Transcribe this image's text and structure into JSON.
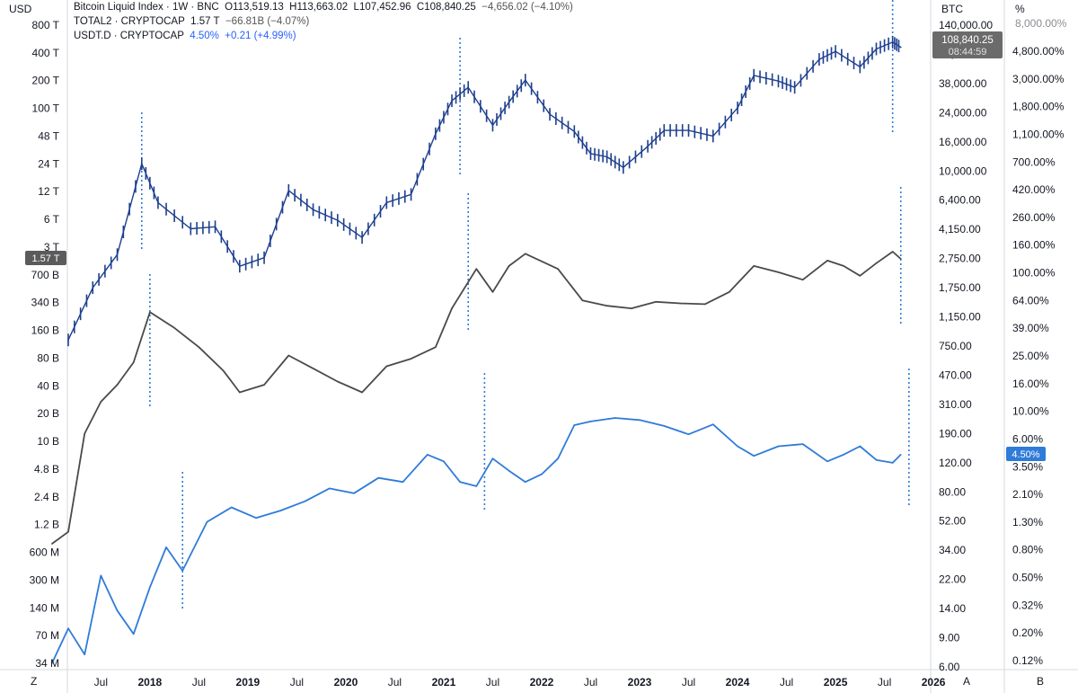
{
  "axes": {
    "left_unit": "USD",
    "right1_unit": "BTC",
    "right2_unit": "%",
    "left_ticks": [
      "800 T",
      "400 T",
      "200 T",
      "100 T",
      "48 T",
      "24 T",
      "12 T",
      "6 T",
      "3 T",
      "700 B",
      "340 B",
      "160 B",
      "80 B",
      "40 B",
      "20 B",
      "10 B",
      "4.8 B",
      "2.4 B",
      "1.2 B",
      "600 M",
      "300 M",
      "140 M",
      "70 M",
      "34 M"
    ],
    "right1_ticks": [
      "140,000.00",
      "58,000.00",
      "38,000.00",
      "24,000.00",
      "16,000.00",
      "10,000.00",
      "6,400.00",
      "4,150.00",
      "2,750.00",
      "1,750.00",
      "1,150.00",
      "750.00",
      "470.00",
      "310.00",
      "190.00",
      "120.00",
      "80.00",
      "52.00",
      "34.00",
      "22.00",
      "14.00",
      "9.00",
      "6.00"
    ],
    "right2_ticks": [
      "4,800.00%",
      "3,000.00%",
      "1,800.00%",
      "1,100.00%",
      "700.00%",
      "420.00%",
      "260.00%",
      "160.00%",
      "100.00%",
      "64.00%",
      "39.00%",
      "25.00%",
      "16.00%",
      "10.00%",
      "6.00%",
      "3.50%",
      "2.10%",
      "1.30%",
      "0.80%",
      "0.50%",
      "0.32%",
      "0.20%",
      "0.12%"
    ],
    "right2_top_partial": "8,000.00%",
    "x_ticks": [
      {
        "label": "Jul",
        "bold": false
      },
      {
        "label": "2018",
        "bold": true
      },
      {
        "label": "Jul",
        "bold": false
      },
      {
        "label": "2019",
        "bold": true
      },
      {
        "label": "Jul",
        "bold": false
      },
      {
        "label": "2020",
        "bold": true
      },
      {
        "label": "Jul",
        "bold": false
      },
      {
        "label": "2021",
        "bold": true
      },
      {
        "label": "Jul",
        "bold": false
      },
      {
        "label": "2022",
        "bold": true
      },
      {
        "label": "Jul",
        "bold": false
      },
      {
        "label": "2023",
        "bold": true
      },
      {
        "label": "Jul",
        "bold": false
      },
      {
        "label": "2024",
        "bold": true
      },
      {
        "label": "Jul",
        "bold": false
      },
      {
        "label": "2025",
        "bold": true
      },
      {
        "label": "Jul",
        "bold": false
      },
      {
        "label": "2026",
        "bold": true
      }
    ],
    "corner_left": "Z",
    "corner_a": "A",
    "corner_b": "B"
  },
  "legend": {
    "line1": {
      "name": "Bitcoin Liquid Index · 1W · BNC",
      "o": "O113,519.13",
      "h": "H113,663.02",
      "l": "L107,452.96",
      "c": "C108,840.25",
      "chg": "−4,656.02 (−4.10%)"
    },
    "line2": {
      "name": "TOTAL2 · CRYPTOCAP",
      "val": "1.57 T",
      "chg": "−66.81B (−4.07%)"
    },
    "line3": {
      "name": "USDT.D · CRYPTOCAP",
      "val": "4.50%",
      "chg": "+0.21 (+4.99%)"
    }
  },
  "badges": {
    "total2": "1.57 T",
    "btc_price": "108,840.25",
    "btc_timer": "08:44:59",
    "usdt": "4.50%"
  },
  "chart_data": {
    "type": "line",
    "x_range": [
      "2017-03",
      "2025-12"
    ],
    "series": [
      {
        "name": "Bitcoin Liquid Index · 1W · BNC",
        "axis": "BTC",
        "style": "candles",
        "x": [
          "2017-03",
          "2017-06",
          "2017-09",
          "2017-12",
          "2018-02",
          "2018-06",
          "2018-09",
          "2018-12",
          "2019-03",
          "2019-06",
          "2019-09",
          "2019-12",
          "2020-03",
          "2020-06",
          "2020-09",
          "2020-12",
          "2021-02",
          "2021-04",
          "2021-07",
          "2021-09",
          "2021-11",
          "2022-02",
          "2022-05",
          "2022-07",
          "2022-09",
          "2022-11",
          "2023-02",
          "2023-04",
          "2023-07",
          "2023-10",
          "2024-01",
          "2024-03",
          "2024-06",
          "2024-08",
          "2024-11",
          "2025-01",
          "2025-04",
          "2025-06",
          "2025-08",
          "2025-09"
        ],
        "values": [
          1100,
          2500,
          4200,
          17500,
          9500,
          6300,
          6500,
          3500,
          4000,
          11500,
          8500,
          7200,
          5500,
          9500,
          10800,
          28000,
          47000,
          58000,
          32000,
          46000,
          65000,
          38000,
          29000,
          20500,
          19500,
          16500,
          23000,
          29500,
          29500,
          27000,
          42000,
          70000,
          64000,
          58000,
          90000,
          102000,
          80000,
          106000,
          118000,
          108840.25
        ],
        "color": "#1e3f8f"
      },
      {
        "name": "TOTAL2 · CRYPTOCAP",
        "axis": "USD",
        "style": "line",
        "x": [
          "2017-01",
          "2017-03",
          "2017-05",
          "2017-07",
          "2017-09",
          "2017-11",
          "2018-01",
          "2018-04",
          "2018-07",
          "2018-10",
          "2018-12",
          "2019-03",
          "2019-06",
          "2019-09",
          "2019-12",
          "2020-03",
          "2020-06",
          "2020-09",
          "2020-12",
          "2021-02",
          "2021-05",
          "2021-07",
          "2021-09",
          "2021-11",
          "2022-03",
          "2022-06",
          "2022-09",
          "2022-12",
          "2023-03",
          "2023-06",
          "2023-09",
          "2023-12",
          "2024-03",
          "2024-06",
          "2024-09",
          "2024-12",
          "2025-02",
          "2025-04",
          "2025-06",
          "2025-08",
          "2025-09"
        ],
        "values": [
          800000000.0,
          1100000000.0,
          15000000000.0,
          35000000000.0,
          55000000000.0,
          100000000000.0,
          380000000000.0,
          250000000000.0,
          150000000000.0,
          80000000000.0,
          45000000000.0,
          55000000000.0,
          120000000000.0,
          85000000000.0,
          60000000000.0,
          45000000000.0,
          90000000000.0,
          110000000000.0,
          150000000000.0,
          420000000000.0,
          1200000000000.0,
          650000000000.0,
          1300000000000.0,
          1800000000000.0,
          1200000000000.0,
          520000000000.0,
          450000000000.0,
          420000000000.0,
          500000000000.0,
          480000000000.0,
          470000000000.0,
          650000000000.0,
          1300000000000.0,
          1100000000000.0,
          900000000000.0,
          1500000000000.0,
          1300000000000.0,
          1000000000000.0,
          1400000000000.0,
          1900000000000.0,
          1570000000000.0
        ],
        "color": "#4a4a4a"
      },
      {
        "name": "USDT.D · CRYPTOCAP",
        "axis": "%",
        "style": "line",
        "x": [
          "2017-01",
          "2017-03",
          "2017-05",
          "2017-07",
          "2017-09",
          "2017-11",
          "2018-01",
          "2018-03",
          "2018-05",
          "2018-08",
          "2018-11",
          "2019-02",
          "2019-05",
          "2019-08",
          "2019-11",
          "2020-02",
          "2020-05",
          "2020-08",
          "2020-11",
          "2021-01",
          "2021-03",
          "2021-05",
          "2021-07",
          "2021-09",
          "2021-11",
          "2022-01",
          "2022-03",
          "2022-05",
          "2022-07",
          "2022-10",
          "2023-01",
          "2023-04",
          "2023-07",
          "2023-10",
          "2024-01",
          "2024-03",
          "2024-06",
          "2024-09",
          "2024-12",
          "2025-02",
          "2025-04",
          "2025-06",
          "2025-08",
          "2025-09"
        ],
        "values": [
          0.12,
          0.22,
          0.14,
          0.55,
          0.3,
          0.2,
          0.45,
          0.9,
          0.6,
          1.4,
          1.8,
          1.5,
          1.7,
          2.0,
          2.5,
          2.3,
          3.0,
          2.8,
          4.5,
          4.0,
          2.8,
          2.6,
          4.2,
          3.4,
          2.8,
          3.2,
          4.2,
          7.5,
          8.0,
          8.5,
          8.2,
          7.4,
          6.4,
          7.6,
          5.2,
          4.4,
          5.2,
          5.4,
          4.0,
          4.5,
          5.2,
          4.1,
          3.9,
          4.5
        ],
        "color": "#2f7bd8"
      }
    ],
    "annotations": [
      {
        "type": "vertical-dotted",
        "date": "2017-12"
      },
      {
        "type": "vertical-dotted",
        "date": "2018-01"
      },
      {
        "type": "vertical-dotted",
        "date": "2018-05"
      },
      {
        "type": "vertical-dotted",
        "date": "2021-03"
      },
      {
        "type": "vertical-dotted",
        "date": "2021-04"
      },
      {
        "type": "vertical-dotted",
        "date": "2021-06"
      },
      {
        "type": "vertical-dotted",
        "date": "2025-08"
      },
      {
        "type": "vertical-dotted",
        "date": "2025-09"
      },
      {
        "type": "vertical-dotted",
        "date": "2025-10"
      }
    ],
    "log_scale": true,
    "grid": false
  }
}
